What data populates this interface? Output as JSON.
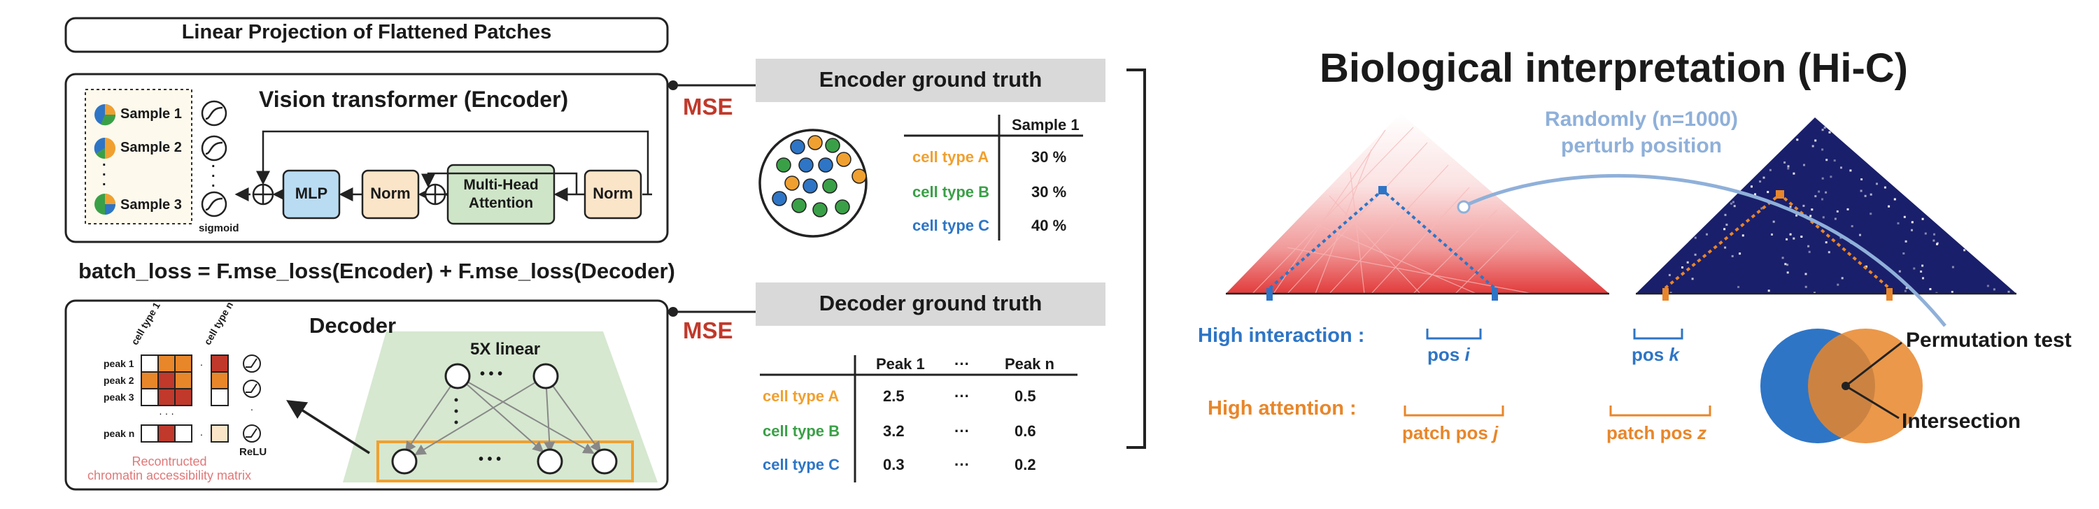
{
  "header": {
    "title": "Linear Projection of Flattened Patches"
  },
  "encoder": {
    "title": "Vision transformer (Encoder)",
    "samples": [
      "Sample 1",
      "Sample 2",
      "Sample 3"
    ],
    "ellipsis": ".",
    "sigmoid_label": "sigmoid",
    "blocks": {
      "mlp": "MLP",
      "norm1": "Norm",
      "attention_line1": "Multi-Head",
      "attention_line2": "Attention",
      "norm2": "Norm"
    }
  },
  "loss_formula": "batch_loss = F.mse_loss(Encoder) + F.mse_loss(Decoder)",
  "decoder": {
    "title": "Decoder",
    "col_labels": [
      "cell type 1",
      "cell type n"
    ],
    "row_labels": [
      "peak 1",
      "peak 2",
      "peak 3",
      "peak n"
    ],
    "relu_label": "ReLU",
    "caption_line1": "Recontructed",
    "caption_line2": "chromatin accessibility matrix",
    "linear_label": "5X linear",
    "dots": "•  •  •"
  },
  "mse_label": "MSE",
  "encoder_gt": {
    "title": "Encoder ground truth",
    "column_header": "Sample 1",
    "rows": [
      {
        "type": "cell type A",
        "value": "30 %"
      },
      {
        "type": "cell type B",
        "value": "30 %"
      },
      {
        "type": "cell type C",
        "value": "40 %"
      }
    ]
  },
  "decoder_gt": {
    "title": "Decoder ground truth",
    "columns": [
      "Peak 1",
      "···",
      "Peak n"
    ],
    "rows": [
      {
        "type": "cell type A",
        "values": [
          "2.5",
          "···",
          "0.5"
        ]
      },
      {
        "type": "cell type B",
        "values": [
          "3.2",
          "···",
          "0.6"
        ]
      },
      {
        "type": "cell type C",
        "values": [
          "0.3",
          "···",
          "0.2"
        ]
      }
    ]
  },
  "bio": {
    "title": "Biological interpretation (Hi-C)",
    "perturb_line1": "Randomly (n=1000)",
    "perturb_line2": "perturb position",
    "high_interaction": "High interaction :",
    "high_attention": "High attention :",
    "pos_prefix": "pos",
    "pos_i": "i",
    "pos_k": "k",
    "patch_pos_prefix": "patch pos",
    "patch_j": "j",
    "patch_z": "z",
    "permutation_test": "Permutation test",
    "intersection": "Intersection"
  },
  "colors": {
    "cell_type_a": "#f0a030",
    "cell_type_b": "#3aa047",
    "cell_type_c": "#2e75c6",
    "mse_red": "#c0392b",
    "high_interaction_blue": "#2e75c6",
    "high_attention_orange": "#e8862a",
    "perturb_blue": "#8fb0d9",
    "caption_pink": "#e07878",
    "navy_map": "#1a1f6b"
  }
}
